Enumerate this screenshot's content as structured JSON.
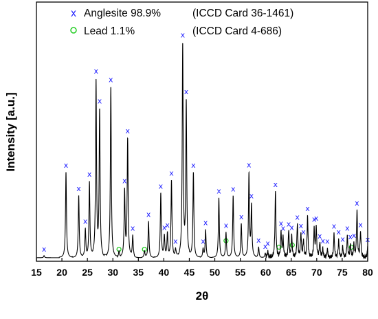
{
  "chart_data": {
    "type": "line",
    "title": "",
    "xlabel": "2θ",
    "ylabel": "Intensity [a.u.]",
    "xlim": [
      15,
      80
    ],
    "ylim": [
      0,
      100
    ],
    "xticks": [
      15,
      20,
      25,
      30,
      35,
      40,
      45,
      50,
      55,
      60,
      65,
      70,
      75,
      80
    ],
    "y_tick_labels": false,
    "grid": false,
    "legend_position": "top-left",
    "legend": [
      {
        "symbol": "x",
        "symbol_color": "#1a1aff",
        "label": "Anglesite 98.9%",
        "reference": "(ICCD Card 36-1461)"
      },
      {
        "symbol": "o",
        "symbol_color": "#22cc22",
        "label": "Lead 1.1%",
        "reference": "(ICCD Card 4-686)"
      }
    ],
    "series": [
      {
        "line_color": "#000000",
        "baseline": 1,
        "noise_from": 60,
        "peaks": [
          [
            16.5,
            1
          ],
          [
            20.8,
            40
          ],
          [
            23.3,
            29
          ],
          [
            24.6,
            13
          ],
          [
            25.4,
            35
          ],
          [
            26.7,
            82
          ],
          [
            27.4,
            68
          ],
          [
            29.6,
            80
          ],
          [
            31.2,
            3
          ],
          [
            32.3,
            31
          ],
          [
            32.9,
            55
          ],
          [
            33.9,
            10
          ],
          [
            36.2,
            3
          ],
          [
            37.0,
            17
          ],
          [
            39.4,
            30
          ],
          [
            40.1,
            10
          ],
          [
            40.7,
            11
          ],
          [
            41.5,
            36
          ],
          [
            42.3,
            4
          ],
          [
            43.7,
            99
          ],
          [
            44.4,
            72
          ],
          [
            45.8,
            40
          ],
          [
            47.7,
            4
          ],
          [
            48.2,
            13
          ],
          [
            50.8,
            28
          ],
          [
            52.2,
            12
          ],
          [
            53.6,
            29
          ],
          [
            55.2,
            16
          ],
          [
            56.7,
            39
          ],
          [
            57.2,
            24
          ],
          [
            58.6,
            5
          ],
          [
            59.9,
            2
          ],
          [
            60.4,
            3
          ],
          [
            61.9,
            31
          ],
          [
            63.0,
            12
          ],
          [
            63.4,
            9
          ],
          [
            64.5,
            13
          ],
          [
            65.1,
            10
          ],
          [
            66.2,
            16
          ],
          [
            66.9,
            11
          ],
          [
            67.4,
            8
          ],
          [
            68.2,
            19
          ],
          [
            69.5,
            13
          ],
          [
            69.9,
            14
          ],
          [
            70.6,
            7
          ],
          [
            71.2,
            4
          ],
          [
            72.1,
            4
          ],
          [
            73.4,
            11
          ],
          [
            74.3,
            8
          ],
          [
            75.1,
            5
          ],
          [
            76.0,
            10
          ],
          [
            76.6,
            6
          ],
          [
            77.3,
            6
          ],
          [
            77.9,
            22
          ],
          [
            78.6,
            12
          ],
          [
            80.0,
            5
          ]
        ],
        "anglesite_markers": [
          16.5,
          20.8,
          23.3,
          24.6,
          25.4,
          26.7,
          27.4,
          29.6,
          32.3,
          32.9,
          33.9,
          37.0,
          39.4,
          40.1,
          40.7,
          41.5,
          42.3,
          43.7,
          44.4,
          45.8,
          47.7,
          48.2,
          50.8,
          52.2,
          53.6,
          55.2,
          56.7,
          57.2,
          58.6,
          59.9,
          60.4,
          61.9,
          63.0,
          63.4,
          64.5,
          65.1,
          66.2,
          66.9,
          67.4,
          68.2,
          69.5,
          69.9,
          70.6,
          71.2,
          72.1,
          73.4,
          74.3,
          75.1,
          76.0,
          76.6,
          77.3,
          77.9,
          78.6,
          80.0
        ],
        "lead_markers": [
          [
            31.2,
            3
          ],
          [
            36.2,
            3
          ],
          [
            52.2,
            7
          ],
          [
            62.6,
            4
          ],
          [
            65.2,
            5
          ],
          [
            76.8,
            4
          ]
        ]
      }
    ]
  }
}
